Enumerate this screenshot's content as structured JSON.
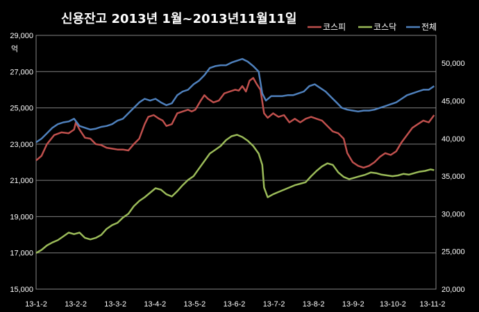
{
  "chart_data": {
    "type": "line",
    "title": "신용잔고 2013년 1월~2013년11월11일",
    "unit_label": "억",
    "y_left": {
      "ticks": [
        "29,000",
        "27,000",
        "25,000",
        "23,000",
        "21,000",
        "19,000",
        "17,000",
        "15,000"
      ],
      "range": [
        15000,
        29000
      ]
    },
    "y_right": {
      "ticks": [
        "50,000",
        "45,000",
        "40,000",
        "35,000",
        "30,000",
        "25,000",
        "20,000"
      ],
      "range": [
        20000,
        53700
      ]
    },
    "x_ticks": [
      "13-1-2",
      "13-2-2",
      "13-3-2",
      "13-4-2",
      "13-5-2",
      "13-6-2",
      "13-7-2",
      "13-8-2",
      "13-9-2",
      "13-10-2",
      "13-11-2"
    ],
    "x_range": [
      0,
      221
    ],
    "grid": true,
    "legend_position": "top-right",
    "series": [
      {
        "name": "코스피",
        "axis": "left",
        "color": "#c0504d",
        "points": [
          [
            0,
            22100
          ],
          [
            3,
            22350
          ],
          [
            6,
            23000
          ],
          [
            10,
            23500
          ],
          [
            14,
            23650
          ],
          [
            18,
            23600
          ],
          [
            21,
            23800
          ],
          [
            22,
            24200
          ],
          [
            24,
            23800
          ],
          [
            27,
            23350
          ],
          [
            30,
            23300
          ],
          [
            33,
            23000
          ],
          [
            36,
            22950
          ],
          [
            39,
            22800
          ],
          [
            42,
            22750
          ],
          [
            45,
            22700
          ],
          [
            48,
            22700
          ],
          [
            51,
            22650
          ],
          [
            54,
            23000
          ],
          [
            57,
            23300
          ],
          [
            60,
            24100
          ],
          [
            62,
            24500
          ],
          [
            65,
            24600
          ],
          [
            68,
            24400
          ],
          [
            70,
            24300
          ],
          [
            72,
            24000
          ],
          [
            75,
            24100
          ],
          [
            78,
            24700
          ],
          [
            81,
            24800
          ],
          [
            84,
            24900
          ],
          [
            86,
            24800
          ],
          [
            88,
            24900
          ],
          [
            91,
            25400
          ],
          [
            93,
            25700
          ],
          [
            95,
            25500
          ],
          [
            98,
            25300
          ],
          [
            101,
            25400
          ],
          [
            104,
            25800
          ],
          [
            107,
            25900
          ],
          [
            110,
            26000
          ],
          [
            112,
            25950
          ],
          [
            114,
            26200
          ],
          [
            116,
            25900
          ],
          [
            118,
            26500
          ],
          [
            120,
            26650
          ],
          [
            122,
            26300
          ],
          [
            124,
            26000
          ],
          [
            126,
            24700
          ],
          [
            128,
            24450
          ],
          [
            131,
            24700
          ],
          [
            134,
            24500
          ],
          [
            137,
            24600
          ],
          [
            140,
            24200
          ],
          [
            143,
            24400
          ],
          [
            146,
            24200
          ],
          [
            149,
            24400
          ],
          [
            152,
            24500
          ],
          [
            155,
            24400
          ],
          [
            158,
            24300
          ],
          [
            161,
            24000
          ],
          [
            164,
            23700
          ],
          [
            167,
            23600
          ],
          [
            170,
            23300
          ],
          [
            172,
            22500
          ],
          [
            175,
            22000
          ],
          [
            178,
            21800
          ],
          [
            181,
            21700
          ],
          [
            184,
            21800
          ],
          [
            187,
            22000
          ],
          [
            190,
            22300
          ],
          [
            193,
            22500
          ],
          [
            196,
            22400
          ],
          [
            199,
            22600
          ],
          [
            202,
            23100
          ],
          [
            205,
            23500
          ],
          [
            208,
            23900
          ],
          [
            211,
            24100
          ],
          [
            214,
            24300
          ],
          [
            217,
            24200
          ],
          [
            220,
            24600
          ]
        ]
      },
      {
        "name": "코스닥",
        "axis": "right",
        "color": "#9bbb59",
        "points": [
          [
            0,
            24800
          ],
          [
            3,
            25200
          ],
          [
            6,
            25800
          ],
          [
            9,
            26200
          ],
          [
            12,
            26500
          ],
          [
            15,
            27000
          ],
          [
            18,
            27500
          ],
          [
            21,
            27300
          ],
          [
            24,
            27500
          ],
          [
            27,
            26800
          ],
          [
            30,
            26600
          ],
          [
            33,
            26800
          ],
          [
            36,
            27200
          ],
          [
            39,
            28000
          ],
          [
            42,
            28500
          ],
          [
            45,
            28800
          ],
          [
            48,
            29500
          ],
          [
            51,
            30000
          ],
          [
            54,
            31000
          ],
          [
            57,
            31700
          ],
          [
            60,
            32200
          ],
          [
            63,
            32800
          ],
          [
            66,
            33400
          ],
          [
            69,
            33200
          ],
          [
            72,
            32600
          ],
          [
            75,
            32300
          ],
          [
            78,
            33000
          ],
          [
            81,
            33800
          ],
          [
            84,
            34500
          ],
          [
            87,
            35000
          ],
          [
            90,
            36000
          ],
          [
            93,
            37000
          ],
          [
            96,
            38000
          ],
          [
            99,
            38500
          ],
          [
            102,
            39000
          ],
          [
            105,
            39800
          ],
          [
            108,
            40300
          ],
          [
            111,
            40500
          ],
          [
            114,
            40200
          ],
          [
            117,
            39700
          ],
          [
            120,
            39000
          ],
          [
            123,
            38000
          ],
          [
            125,
            36500
          ],
          [
            126,
            33500
          ],
          [
            128,
            32200
          ],
          [
            131,
            32600
          ],
          [
            134,
            32900
          ],
          [
            137,
            33200
          ],
          [
            140,
            33500
          ],
          [
            143,
            33800
          ],
          [
            146,
            34000
          ],
          [
            149,
            34200
          ],
          [
            152,
            35000
          ],
          [
            155,
            35700
          ],
          [
            158,
            36300
          ],
          [
            161,
            36700
          ],
          [
            164,
            36500
          ],
          [
            167,
            35500
          ],
          [
            170,
            34900
          ],
          [
            173,
            34600
          ],
          [
            176,
            34800
          ],
          [
            179,
            35000
          ],
          [
            182,
            35200
          ],
          [
            185,
            35500
          ],
          [
            188,
            35400
          ],
          [
            191,
            35200
          ],
          [
            194,
            35100
          ],
          [
            197,
            35000
          ],
          [
            200,
            35100
          ],
          [
            203,
            35300
          ],
          [
            206,
            35200
          ],
          [
            209,
            35400
          ],
          [
            212,
            35600
          ],
          [
            215,
            35700
          ],
          [
            218,
            35900
          ],
          [
            220,
            35800
          ]
        ]
      },
      {
        "name": "전체",
        "axis": "left",
        "color": "#4f81bd",
        "points": [
          [
            0,
            23100
          ],
          [
            3,
            23300
          ],
          [
            6,
            23600
          ],
          [
            9,
            23900
          ],
          [
            12,
            24100
          ],
          [
            15,
            24200
          ],
          [
            18,
            24250
          ],
          [
            21,
            24400
          ],
          [
            24,
            24000
          ],
          [
            27,
            23900
          ],
          [
            30,
            23800
          ],
          [
            33,
            23850
          ],
          [
            36,
            23950
          ],
          [
            39,
            24000
          ],
          [
            42,
            24100
          ],
          [
            45,
            24300
          ],
          [
            48,
            24400
          ],
          [
            51,
            24700
          ],
          [
            54,
            25000
          ],
          [
            57,
            25300
          ],
          [
            60,
            25500
          ],
          [
            63,
            25400
          ],
          [
            66,
            25500
          ],
          [
            69,
            25300
          ],
          [
            72,
            25150
          ],
          [
            75,
            25250
          ],
          [
            78,
            25700
          ],
          [
            81,
            25900
          ],
          [
            84,
            26000
          ],
          [
            87,
            26300
          ],
          [
            90,
            26500
          ],
          [
            93,
            26800
          ],
          [
            96,
            27200
          ],
          [
            99,
            27300
          ],
          [
            102,
            27350
          ],
          [
            105,
            27350
          ],
          [
            108,
            27500
          ],
          [
            111,
            27600
          ],
          [
            114,
            27700
          ],
          [
            117,
            27550
          ],
          [
            120,
            27300
          ],
          [
            123,
            27000
          ],
          [
            125,
            25800
          ],
          [
            127,
            25400
          ],
          [
            130,
            25650
          ],
          [
            133,
            25650
          ],
          [
            136,
            25650
          ],
          [
            139,
            25700
          ],
          [
            142,
            25700
          ],
          [
            145,
            25800
          ],
          [
            148,
            25900
          ],
          [
            151,
            26200
          ],
          [
            154,
            26300
          ],
          [
            157,
            26100
          ],
          [
            160,
            25900
          ],
          [
            163,
            25600
          ],
          [
            166,
            25300
          ],
          [
            169,
            25000
          ],
          [
            172,
            24900
          ],
          [
            175,
            24850
          ],
          [
            178,
            24800
          ],
          [
            181,
            24850
          ],
          [
            184,
            24850
          ],
          [
            187,
            24900
          ],
          [
            190,
            25000
          ],
          [
            193,
            25100
          ],
          [
            196,
            25200
          ],
          [
            199,
            25300
          ],
          [
            202,
            25500
          ],
          [
            205,
            25700
          ],
          [
            208,
            25800
          ],
          [
            211,
            25900
          ],
          [
            214,
            26000
          ],
          [
            217,
            26000
          ],
          [
            220,
            26200
          ]
        ]
      }
    ]
  }
}
